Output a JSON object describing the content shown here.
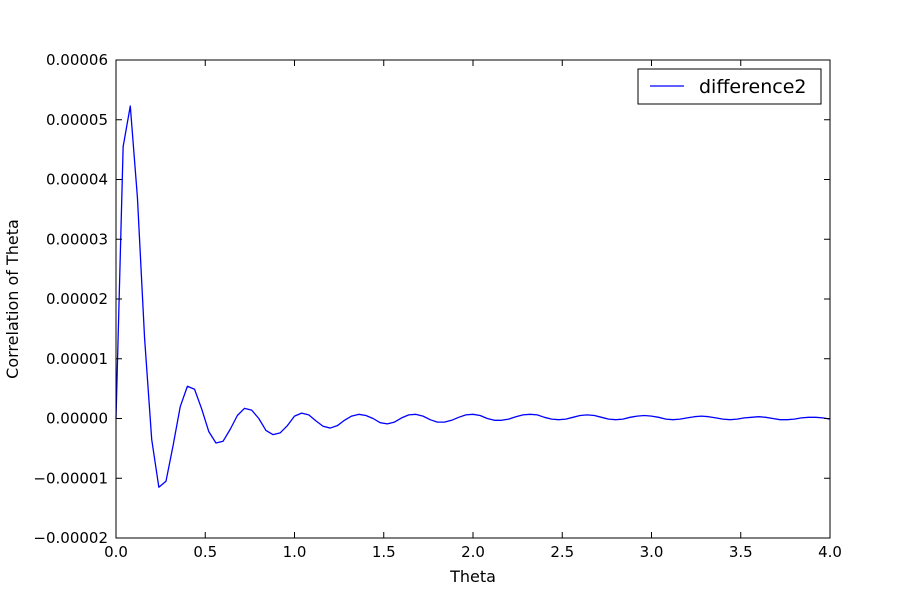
{
  "chart_data": {
    "type": "line",
    "title": "",
    "xlabel": "Theta",
    "ylabel": "Correlation of Theta",
    "xlim": [
      0.0,
      4.0
    ],
    "ylim": [
      -2e-05,
      6e-05
    ],
    "grid": false,
    "legend_position": "top-right",
    "x_ticks": [
      "0.0",
      "0.5",
      "1.0",
      "1.5",
      "2.0",
      "2.5",
      "3.0",
      "3.5",
      "4.0"
    ],
    "y_ticks": [
      "−0.00002",
      "−0.00001",
      "0.00000",
      "0.00001",
      "0.00002",
      "0.00003",
      "0.00004",
      "0.00005",
      "0.00006"
    ],
    "series": [
      {
        "name": "difference2",
        "color": "#0000ff",
        "x": [
          0.0,
          0.04,
          0.08,
          0.12,
          0.16,
          0.2,
          0.24,
          0.28,
          0.32,
          0.36,
          0.4,
          0.44,
          0.48,
          0.52,
          0.56,
          0.6,
          0.64,
          0.68,
          0.72,
          0.76,
          0.8,
          0.84,
          0.88,
          0.92,
          0.96,
          1.0,
          1.04,
          1.08,
          1.12,
          1.16,
          1.2,
          1.24,
          1.28,
          1.32,
          1.36,
          1.4,
          1.44,
          1.48,
          1.52,
          1.56,
          1.6,
          1.64,
          1.68,
          1.72,
          1.76,
          1.8,
          1.84,
          1.88,
          1.92,
          1.96,
          2.0,
          2.04,
          2.08,
          2.12,
          2.16,
          2.2,
          2.24,
          2.28,
          2.32,
          2.36,
          2.4,
          2.44,
          2.48,
          2.52,
          2.56,
          2.6,
          2.64,
          2.68,
          2.72,
          2.76,
          2.8,
          2.84,
          2.88,
          2.92,
          2.96,
          3.0,
          3.04,
          3.08,
          3.12,
          3.16,
          3.2,
          3.24,
          3.28,
          3.32,
          3.36,
          3.4,
          3.44,
          3.48,
          3.52,
          3.56,
          3.6,
          3.64,
          3.68,
          3.72,
          3.76,
          3.8,
          3.84,
          3.88,
          3.92,
          3.96,
          4.0
        ],
        "values": [
          0.0,
          4.55e-05,
          5.23e-05,
          3.7e-05,
          1.35e-05,
          -3.5e-06,
          -1.15e-05,
          -1.05e-05,
          -4.5e-06,
          2e-06,
          5.4e-06,
          4.9e-06,
          1.6e-06,
          -2.2e-06,
          -4.1e-06,
          -3.8e-06,
          -1.8e-06,
          5e-07,
          1.7e-06,
          1.4e-06,
          0.0,
          -2e-06,
          -2.7e-06,
          -2.4e-06,
          -1.2e-06,
          4e-07,
          9e-07,
          6e-07,
          -4e-07,
          -1.3e-06,
          -1.6e-06,
          -1.2e-06,
          -3e-07,
          4e-07,
          7e-07,
          5e-07,
          0.0,
          -7e-07,
          -9e-07,
          -6e-07,
          1e-07,
          6e-07,
          7e-07,
          4e-07,
          -2e-07,
          -6e-07,
          -6e-07,
          -3e-07,
          2e-07,
          6e-07,
          7e-07,
          5e-07,
          0.0,
          -3e-07,
          -3e-07,
          -1e-07,
          3e-07,
          6e-07,
          7e-07,
          6e-07,
          2e-07,
          -1e-07,
          -2e-07,
          -1e-07,
          2e-07,
          5e-07,
          6e-07,
          5e-07,
          2e-07,
          -1e-07,
          -2e-07,
          -1e-07,
          2e-07,
          4e-07,
          5e-07,
          4e-07,
          2e-07,
          -1e-07,
          -2e-07,
          -1e-07,
          1e-07,
          3e-07,
          4e-07,
          3e-07,
          1e-07,
          -1e-07,
          -2e-07,
          -1e-07,
          1e-07,
          2e-07,
          3e-07,
          2e-07,
          0.0,
          -2e-07,
          -2e-07,
          -1e-07,
          1e-07,
          2e-07,
          2e-07,
          1e-07,
          -1e-07
        ]
      }
    ]
  }
}
